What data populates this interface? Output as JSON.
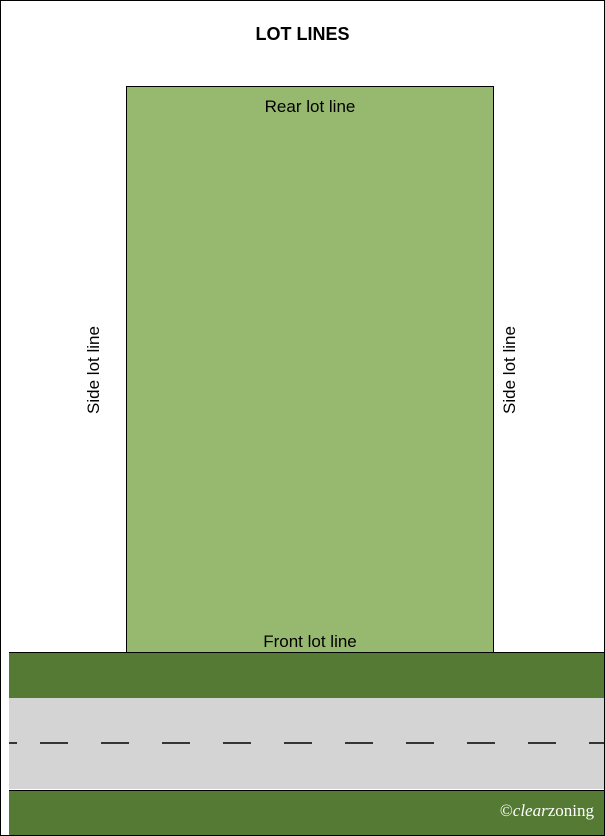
{
  "title": "LOT LINES",
  "labels": {
    "rear": "Rear lot line",
    "front": "Front lot line",
    "side_left": "Side lot line",
    "side_right": "Side lot line"
  },
  "copyright": {
    "symbol": "©",
    "italic": "clear",
    "rest": "zoning"
  },
  "colors": {
    "lot_fill": "#97b96f",
    "grass": "#557a33",
    "road": "#d4d4d4",
    "lane_marking": "#000000"
  }
}
